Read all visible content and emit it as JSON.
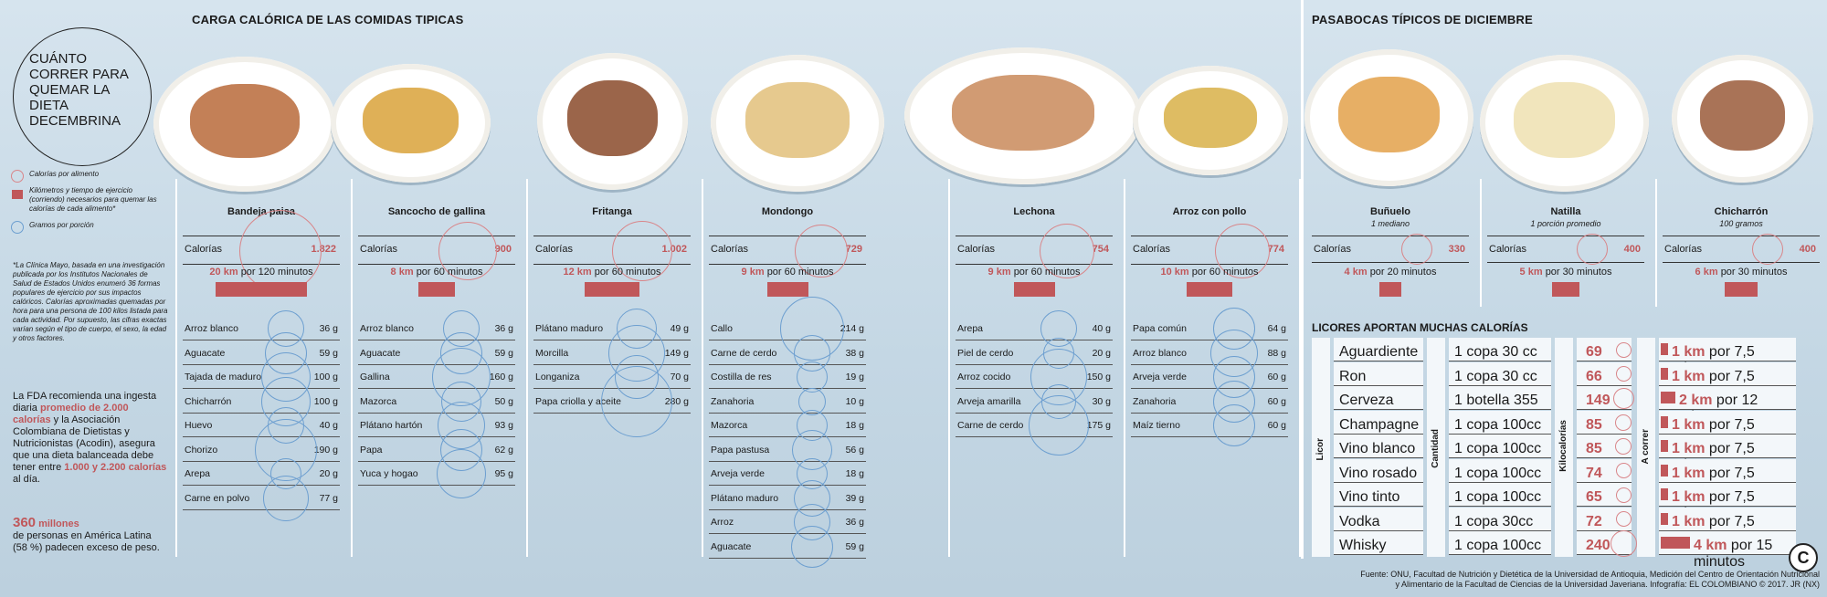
{
  "titles": {
    "carga": "CARGA CALÓRICA DE LAS COMIDAS TIPICAS",
    "pasabocas": "PASABOCAS TÍPICOS DE DICIEMBRE",
    "licores": "LICORES APORTAN MUCHAS CALORÍAS"
  },
  "intro": "CUÁNTO CORRER PARA QUEMAR LA DIETA DECEMBRINA",
  "legend": {
    "calorias": "Calorías por alimento",
    "km": "Kilómetros y tiempo de ejercicio (corriendo) necesarios para quemar las calorías de cada alimento*",
    "gramos": "Gramos por porción"
  },
  "note": "*La Clínica Mayo, basada en una investigación publicada por los Institutos Nacionales de Salud de Estados Unidos enumeró 36 formas populares de ejercicio por sus impactos calóricos. Calorías aproximadas quemadas por hora para una persona de 100 kilos listada para cada actividad. Por supuesto, las cifras exactas varían según el tipo de cuerpo, el sexo, la edad y otros factores.",
  "fda": {
    "p1": "La FDA recomienda una ingesta diaria ",
    "r1": "promedio de 2.000 calorías",
    "p2": " y la Asociación Colombiana de Dietistas y Nutricionistas (Acodin), asegura que una dieta balanceada debe tener entre ",
    "r2": "1.000 y 2.200 calorías",
    "p3": " al día."
  },
  "millones": {
    "num": "360",
    "unit": "millones",
    "text": "de personas en América Latina (58 %) padecen exceso de peso."
  },
  "cal_label": "Calorías",
  "dishes": [
    {
      "name": "Bandeja paisa",
      "cal": "1.822",
      "km": "20 km",
      "time": "por 120 minutos",
      "ing": [
        [
          "Arroz blanco",
          "36 g"
        ],
        [
          "Aguacate",
          "59 g"
        ],
        [
          "Tajada de maduro",
          "100 g"
        ],
        [
          "Chicharrón",
          "100 g"
        ],
        [
          "Huevo",
          "40 g"
        ],
        [
          "Chorizo",
          "190 g"
        ],
        [
          "Arepa",
          "20 g"
        ],
        [
          "Carne en polvo",
          "77 g"
        ]
      ]
    },
    {
      "name": "Sancocho de gallina",
      "cal": "900",
      "km": "8 km",
      "time": "por 60 minutos",
      "ing": [
        [
          "Arroz blanco",
          "36 g"
        ],
        [
          "Aguacate",
          "59 g"
        ],
        [
          "Gallina",
          "160 g"
        ],
        [
          "Mazorca",
          "50 g"
        ],
        [
          "Plátano hartón",
          "93 g"
        ],
        [
          "Papa",
          "62 g"
        ],
        [
          "Yuca y hogao",
          "95 g"
        ]
      ]
    },
    {
      "name": "Fritanga",
      "cal": "1.002",
      "km": "12 km",
      "time": "por 60 minutos",
      "ing": [
        [
          "Plátano maduro",
          "49 g"
        ],
        [
          "Morcilla",
          "149 g"
        ],
        [
          "Longaniza",
          "70 g"
        ],
        [
          "Papa criolla y aceite",
          "280 g"
        ]
      ]
    },
    {
      "name": "Mondongo",
      "cal": "729",
      "km": "9 km",
      "time": "por 60 minutos",
      "ing": [
        [
          "Callo",
          "214 g"
        ],
        [
          "Carne de cerdo",
          "38 g"
        ],
        [
          "Costilla de res",
          "19 g"
        ],
        [
          "Zanahoria",
          "10 g"
        ],
        [
          "Mazorca",
          "18 g"
        ],
        [
          "Papa pastusa",
          "56 g"
        ],
        [
          "Arveja verde",
          "18 g"
        ],
        [
          "Plátano maduro",
          "39 g"
        ],
        [
          "Arroz",
          "36 g"
        ],
        [
          "Aguacate",
          "59 g"
        ]
      ]
    },
    {
      "name": "Lechona",
      "cal": "754",
      "km": "9 km",
      "time": "por 60 minutos",
      "ing": [
        [
          "Arepa",
          "40 g"
        ],
        [
          "Piel de cerdo",
          "20 g"
        ],
        [
          "Arroz cocido",
          "150 g"
        ],
        [
          "Arveja amarilla",
          "30 g"
        ],
        [
          "Carne de cerdo",
          "175 g"
        ]
      ]
    },
    {
      "name": "Arroz con pollo",
      "cal": "774",
      "km": "10 km",
      "time": "por 60 minutos",
      "ing": [
        [
          "Papa común",
          "64 g"
        ],
        [
          "Arroz blanco",
          "88 g"
        ],
        [
          "Arveja verde",
          "60 g"
        ],
        [
          "Zanahoria",
          "60 g"
        ],
        [
          "Maíz tierno",
          "60 g"
        ]
      ]
    }
  ],
  "snacks": [
    {
      "name": "Buñuelo",
      "sub": "1 mediano",
      "cal": "330",
      "km": "4 km",
      "time": "por 20 minutos"
    },
    {
      "name": "Natilla",
      "sub": "1 porción promedio",
      "cal": "400",
      "km": "5 km",
      "time": "por 30 minutos"
    },
    {
      "name": "Chicharrón",
      "sub": "100 gramos",
      "cal": "400",
      "km": "6 km",
      "time": "por 30 minutos"
    }
  ],
  "liquor_headers": {
    "licor": "Licor",
    "cantidad": "Cantidad",
    "kcal": "Kilocalorías",
    "correr": "A correr"
  },
  "liquors": [
    {
      "name": "Aguardiente",
      "qty": "1 copa 30 cc",
      "kcal": "69",
      "km": "1 km",
      "time": "por 7,5 minutos"
    },
    {
      "name": "Ron",
      "qty": "1 copa 30 cc",
      "kcal": "66",
      "km": "1 km",
      "time": "por 7,5 minutos"
    },
    {
      "name": "Cerveza",
      "qty": "1 botella 355 cc",
      "kcal": "149",
      "km": "2 km",
      "time": "por 12 minutos"
    },
    {
      "name": "Champagne",
      "qty": "1 copa 100cc",
      "kcal": "85",
      "km": "1 km",
      "time": "por 7,5 minutos"
    },
    {
      "name": "Vino blanco",
      "qty": "1 copa 100cc",
      "kcal": "85",
      "km": "1 km",
      "time": "por 7,5 minutos"
    },
    {
      "name": "Vino rosado",
      "qty": "1 copa 100cc",
      "kcal": "74",
      "km": "1 km",
      "time": "por 7,5 minutos"
    },
    {
      "name": "Vino tinto",
      "qty": "1 copa 100cc",
      "kcal": "65",
      "km": "1 km",
      "time": "por 7,5 minutos"
    },
    {
      "name": "Vodka",
      "qty": "1 copa 30cc",
      "kcal": "72",
      "km": "1 km",
      "time": "por 7,5 minutos"
    },
    {
      "name": "Whisky",
      "qty": "1 copa 100cc",
      "kcal": "240",
      "km": "4 km",
      "time": "por 15 minutos"
    }
  ],
  "footer": {
    "l1": "Fuente: ONU, Facultad de Nutrición y Dietética de la Universidad de Antioquia, Medición del Centro de Orientación Nutricional",
    "l2": "y Alimentario de la Facultad de Ciencias de la Universidad Javeriana. Infografía: EL COLOMBIANO © 2017. JR (NX)"
  },
  "logo": "C",
  "colors": {
    "red": "#c0575a",
    "blue": "#6d9fd0",
    "bg": "#c9dbe7"
  }
}
